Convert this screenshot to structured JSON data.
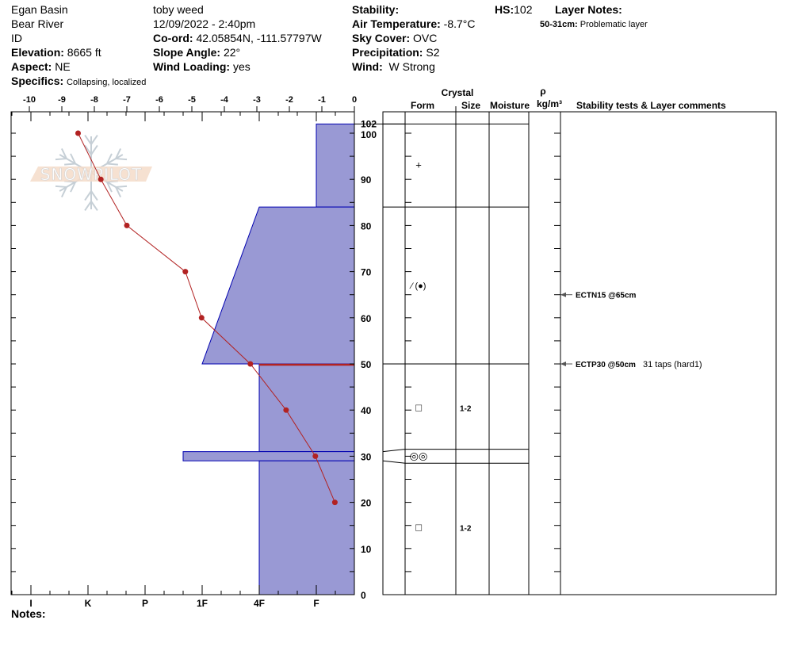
{
  "header": {
    "location": "Egan Basin",
    "range": "Bear River",
    "state": "ID",
    "elevation_label": "Elevation:",
    "elevation": "8665 ft",
    "aspect_label": "Aspect:",
    "aspect": "NE",
    "specifics_label": "Specifics:",
    "specifics": "Collapsing, localized",
    "observer": "toby weed",
    "datetime": "12/09/2022 - 2:40pm",
    "coord_label": "Co-ord:",
    "coord": "42.05854N, -111.57797W",
    "slope_label": "Slope Angle:",
    "slope": "22°",
    "wind_loading_label": "Wind Loading:",
    "wind_loading": "yes",
    "stability_label": "Stability:",
    "stability": "",
    "air_temp_label": "Air Temperature:",
    "air_temp": "-8.7°C",
    "sky_label": "Sky Cover:",
    "sky": "OVC",
    "precip_label": "Precipitation:",
    "precip": "S2",
    "wind_label": "Wind:",
    "wind": "W Strong",
    "hs_label": "HS:",
    "hs": "102",
    "layer_notes_label": "Layer Notes:",
    "layer_notes": [
      {
        "range": "50-31cm:",
        "text": "Problematic layer"
      }
    ]
  },
  "notes_label": "Notes:",
  "table_headers": {
    "crystal": "Crystal",
    "form": "Form",
    "size": "Size",
    "moisture": "Moisture",
    "rho": "ρ",
    "density_unit": "kg/m³",
    "comments": "Stability tests & Layer comments"
  },
  "colors": {
    "hardness_fill": "#9999d4",
    "hardness_edge": "#0000b0",
    "temperature": "#b22222",
    "critical": "#b22222"
  },
  "watermark": "SNOWPILOT",
  "chart_data": {
    "type": "snow-profile",
    "depth_axis": {
      "range": [
        0,
        102
      ],
      "ticks": [
        "102",
        "100",
        "90",
        "80",
        "70",
        "60",
        "50",
        "40",
        "30",
        "20",
        "10",
        "0"
      ],
      "unit": "cm"
    },
    "temperature_axis": {
      "range": [
        -10,
        0
      ],
      "ticks": [
        "-10",
        "-9",
        "-8",
        "-7",
        "-6",
        "-5",
        "-4",
        "-3",
        "-2",
        "-1",
        "0"
      ]
    },
    "hardness_axis": {
      "ticks": [
        "I",
        "K",
        "P",
        "1F",
        "4F",
        "F"
      ]
    },
    "temperature_profile": [
      {
        "depth": 100,
        "temp": -8.5
      },
      {
        "depth": 90,
        "temp": -7.8
      },
      {
        "depth": 80,
        "temp": -7.0
      },
      {
        "depth": 70,
        "temp": -5.2
      },
      {
        "depth": 60,
        "temp": -4.7
      },
      {
        "depth": 50,
        "temp": -3.2
      },
      {
        "depth": 40,
        "temp": -2.1
      },
      {
        "depth": 30,
        "temp": -1.2
      },
      {
        "depth": 20,
        "temp": -0.6
      }
    ],
    "layers": [
      {
        "top": 102,
        "bottom": 84,
        "hardness_top": "F",
        "hardness_bottom": "F",
        "form": "+",
        "size": ""
      },
      {
        "top": 84,
        "bottom": 50,
        "hardness_top": "4F",
        "hardness_bottom": "1F",
        "form": "⁄ (●)",
        "size": ""
      },
      {
        "top": 50,
        "bottom": 31,
        "hardness_top": "4F",
        "hardness_bottom": "4F",
        "form": "□",
        "size": "1-2"
      },
      {
        "top": 31,
        "bottom": 29,
        "hardness_top": "1F+",
        "hardness_bottom": "1F+",
        "form": "◎◎",
        "size": ""
      },
      {
        "top": 29,
        "bottom": 0,
        "hardness_top": "4F",
        "hardness_bottom": "4F",
        "form": "□",
        "size": "1-2"
      }
    ],
    "critical_layer_depth": 50,
    "stability_tests": [
      {
        "depth": 65,
        "label": "ECTN15 @65cm",
        "comment": ""
      },
      {
        "depth": 50,
        "label": "ECTP30 @50cm",
        "comment": "31 taps (hard1)"
      }
    ]
  }
}
